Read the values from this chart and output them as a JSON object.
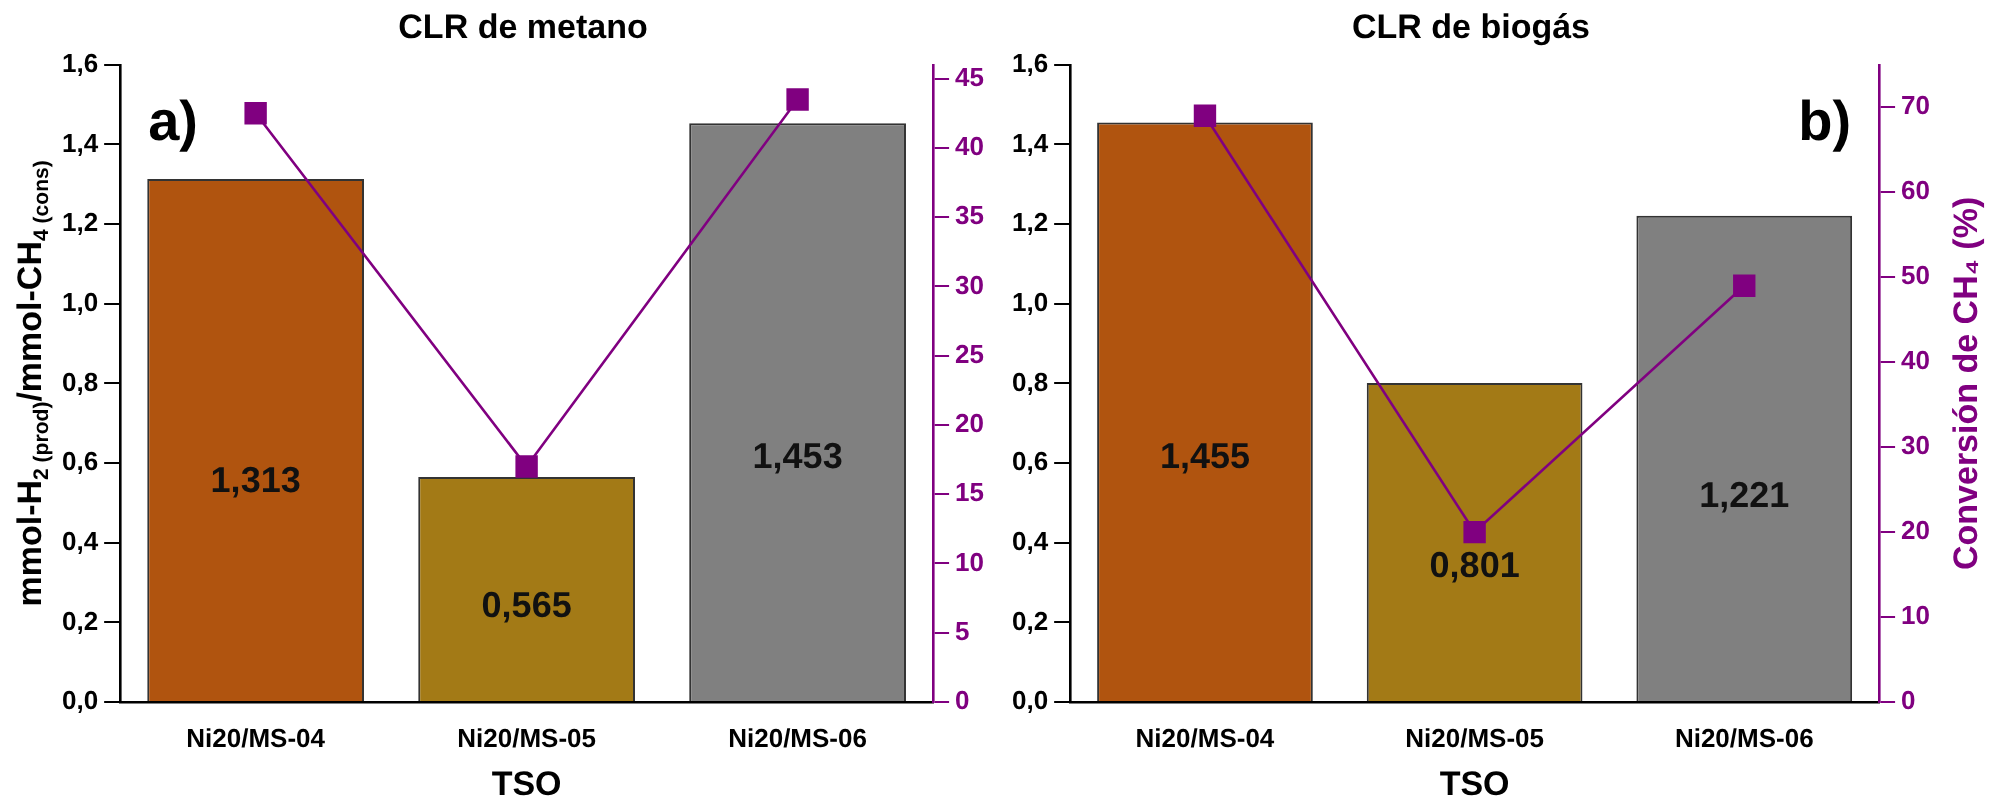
{
  "chart_data": [
    {
      "type": "bar",
      "title": "CLR de metano",
      "xlabel": "TSO",
      "ylabel": "mmol-H$_{2 (prod)}$/mmol-CH$_{4 (cons)}$",
      "annotations": [
        "a)"
      ],
      "categories": [
        "Ni20/MS-04",
        "Ni20/MS-05",
        "Ni20/MS-06"
      ],
      "series": [
        {
          "colors": [
            "#b0540f",
            "#a37a16",
            "#808080"
          ],
          "values": [
            1.313,
            0.565,
            1.453
          ],
          "value_labels": [
            "1,313",
            "0,565",
            "1,453"
          ]
        },
        {
          "type": "line",
          "axis": "y2",
          "color": "#800080",
          "values": [
            42.5,
            17,
            43.5
          ]
        }
      ],
      "ylim": [
        0,
        1.6
      ],
      "yticks": [
        {
          "value": 0,
          "label": "0,0"
        },
        {
          "value": 0.2,
          "label": "0,2"
        },
        {
          "value": 0.4,
          "label": "0,4"
        },
        {
          "value": 0.6,
          "label": "0,6"
        },
        {
          "value": 0.8,
          "label": "0,8"
        },
        {
          "value": 1.0,
          "label": "1,0"
        },
        {
          "value": 1.2,
          "label": "1,2"
        },
        {
          "value": 1.4,
          "label": "1,4"
        },
        {
          "value": 1.6,
          "label": "1,6"
        }
      ],
      "y2lim": [
        0,
        46
      ],
      "y2ticks": [
        0,
        5,
        10,
        15,
        20,
        25,
        30,
        35,
        40,
        45
      ],
      "marker": "square",
      "grid": false,
      "legend": false
    },
    {
      "type": "bar",
      "title": "CLR de biogás",
      "xlabel": "TSO",
      "y2label": "Conversión de CH₄ (%)",
      "annotations": [
        "b)"
      ],
      "categories": [
        "Ni20/MS-04",
        "Ni20/MS-05",
        "Ni20/MS-06"
      ],
      "series": [
        {
          "colors": [
            "#b0540f",
            "#a37a16",
            "#808080"
          ],
          "values": [
            1.455,
            0.801,
            1.221
          ],
          "value_labels": [
            "1,455",
            "0,801",
            "1,221"
          ]
        },
        {
          "type": "line",
          "axis": "y2",
          "color": "#800080",
          "values": [
            69,
            20,
            49
          ]
        }
      ],
      "ylim": [
        0,
        1.6
      ],
      "yticks": [
        {
          "value": 0,
          "label": "0,0"
        },
        {
          "value": 0.2,
          "label": "0,2"
        },
        {
          "value": 0.4,
          "label": "0,4"
        },
        {
          "value": 0.6,
          "label": "0,6"
        },
        {
          "value": 0.8,
          "label": "0,8"
        },
        {
          "value": 1.0,
          "label": "1,0"
        },
        {
          "value": 1.2,
          "label": "1,2"
        },
        {
          "value": 1.4,
          "label": "1,4"
        },
        {
          "value": 1.6,
          "label": "1,6"
        }
      ],
      "y2lim": [
        0,
        75
      ],
      "y2ticks": [
        0,
        10,
        20,
        30,
        40,
        50,
        60,
        70
      ],
      "marker": "square",
      "grid": false,
      "legend": false
    }
  ]
}
